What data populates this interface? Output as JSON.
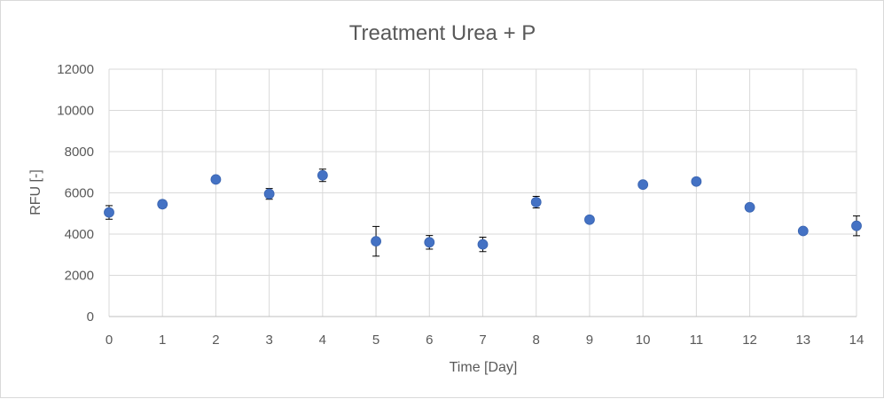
{
  "chart_data": {
    "type": "scatter",
    "title": "Treatment Urea + P",
    "xlabel": "Time [Day]",
    "ylabel": "RFU [-]",
    "xlim": [
      0,
      14
    ],
    "ylim": [
      0,
      12000
    ],
    "xticks": [
      0,
      1,
      2,
      3,
      4,
      5,
      6,
      7,
      8,
      9,
      10,
      11,
      12,
      13,
      14
    ],
    "yticks": [
      0,
      2000,
      4000,
      6000,
      8000,
      10000,
      12000
    ],
    "grid": true,
    "legend": "none",
    "marker_color": "#4472C4",
    "series": [
      {
        "x": [
          0,
          1,
          2,
          3,
          4,
          5,
          6,
          7,
          8,
          9,
          10,
          11,
          12,
          13,
          14
        ],
        "y": [
          5050,
          5450,
          6650,
          5950,
          6850,
          3650,
          3600,
          3500,
          5550,
          4700,
          6400,
          6550,
          5300,
          4150,
          4400
        ],
        "error": [
          330,
          180,
          100,
          260,
          300,
          720,
          330,
          350,
          280,
          0,
          0,
          0,
          0,
          0,
          480
        ]
      }
    ]
  }
}
